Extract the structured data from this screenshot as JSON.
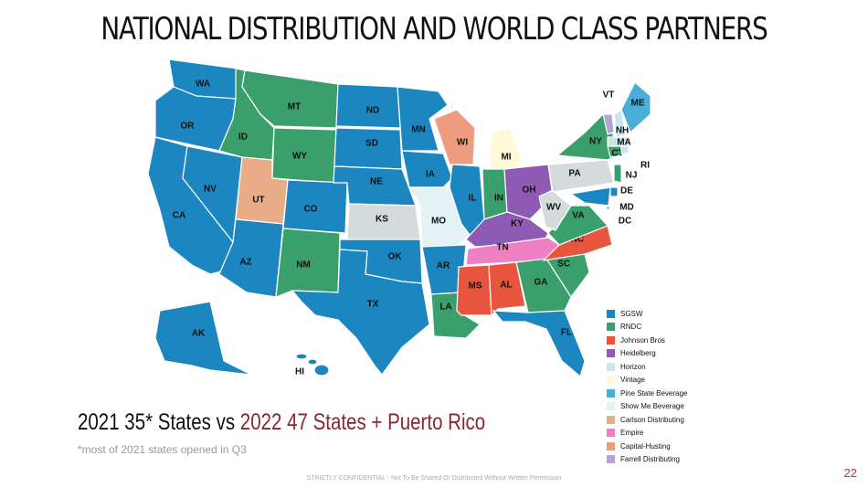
{
  "title": "NATIONAL DISTRIBUTION AND WORLD CLASS PARTNERS",
  "states": [
    {
      "label": "WA",
      "color": "#1b86c0"
    },
    {
      "label": "OR",
      "color": "#1b86c0"
    },
    {
      "label": "CA",
      "color": "#1b86c0"
    },
    {
      "label": "NV",
      "color": "#1b86c0"
    },
    {
      "label": "ID",
      "color": "#3a9f6b"
    },
    {
      "label": "MT",
      "color": "#3a9f6b"
    },
    {
      "label": "WY",
      "color": "#3a9f6b"
    },
    {
      "label": "UT",
      "color": "#e8ad86"
    },
    {
      "label": "CO",
      "color": "#1b86c0"
    },
    {
      "label": "AZ",
      "color": "#1b86c0"
    },
    {
      "label": "NM",
      "color": "#3a9f6b"
    },
    {
      "label": "ND",
      "color": "#1b86c0"
    },
    {
      "label": "SD",
      "color": "#1b86c0"
    },
    {
      "label": "NE",
      "color": "#1b86c0"
    },
    {
      "label": "KS",
      "color": "#d5dadd"
    },
    {
      "label": "OK",
      "color": "#1b86c0"
    },
    {
      "label": "TX",
      "color": "#1b86c0"
    },
    {
      "label": "MN",
      "color": "#1b86c0"
    },
    {
      "label": "IA",
      "color": "#1b86c0"
    },
    {
      "label": "MO",
      "color": "#e4f2f6"
    },
    {
      "label": "AR",
      "color": "#1b86c0"
    },
    {
      "label": "LA",
      "color": "#3a9f6b"
    },
    {
      "label": "WI",
      "color": "#ee9c7f"
    },
    {
      "label": "IL",
      "color": "#1b86c0"
    },
    {
      "label": "MI",
      "color": "#fdf9d9"
    },
    {
      "label": "IN",
      "color": "#3a9f6b"
    },
    {
      "label": "OH",
      "color": "#8e5ab3"
    },
    {
      "label": "KY",
      "color": "#8e5ab3"
    },
    {
      "label": "TN",
      "color": "#ee80c3"
    },
    {
      "label": "MS",
      "color": "#e8553f"
    },
    {
      "label": "AL",
      "color": "#e8553f"
    },
    {
      "label": "GA",
      "color": "#3a9f6b"
    },
    {
      "label": "FL",
      "color": "#1b86c0"
    },
    {
      "label": "SC",
      "color": "#3a9f6b"
    },
    {
      "label": "NC",
      "color": "#e8553f"
    },
    {
      "label": "VA",
      "color": "#3a9f6b"
    },
    {
      "label": "WV",
      "color": "#d5dadd"
    },
    {
      "label": "PA",
      "color": "#d5dadd"
    },
    {
      "label": "NY",
      "color": "#3a9f6b"
    },
    {
      "label": "VT",
      "color": "#b8a2d4"
    },
    {
      "label": "NH",
      "color": "#c9e6ea"
    },
    {
      "label": "ME",
      "color": "#4aaed6"
    },
    {
      "label": "MA",
      "color": "#c9e6ea"
    },
    {
      "label": "CT",
      "color": "#3a9f6b"
    },
    {
      "label": "RI",
      "color": "#c9e6ea"
    },
    {
      "label": "NJ",
      "color": "#3a9f6b"
    },
    {
      "label": "DE",
      "color": "#1b86c0"
    },
    {
      "label": "MD",
      "color": "#1b86c0"
    },
    {
      "label": "DC",
      "color": "#1b86c0"
    },
    {
      "label": "AK",
      "color": "#1b86c0"
    },
    {
      "label": "HI",
      "color": "#1b86c0"
    }
  ],
  "legend": [
    {
      "name": "SGSW",
      "color": "#1b86c0"
    },
    {
      "name": "RNDC",
      "color": "#3a9f6b"
    },
    {
      "name": "Johnson Bros",
      "color": "#e8553f"
    },
    {
      "name": "Heidelberg",
      "color": "#8e5ab3"
    },
    {
      "name": "Horizon",
      "color": "#c9e6ea"
    },
    {
      "name": "Vintage",
      "color": "#fdf9d9"
    },
    {
      "name": "Pine State Beverage",
      "color": "#4aaed6"
    },
    {
      "name": "Show Me Beverage",
      "color": "#e4f2f6"
    },
    {
      "name": "Carlson Distributing",
      "color": "#e8ad86"
    },
    {
      "name": "Empire",
      "color": "#ee80c3"
    },
    {
      "name": "Capital-Husting",
      "color": "#ee9c7f"
    },
    {
      "name": "Farrell Distributing",
      "color": "#b8a2d4"
    }
  ],
  "headline": {
    "before": "2021 35* States vs",
    "highlight": "2022 47 States + Puerto Rico"
  },
  "footnote": "*most of 2021 states opened in Q3",
  "footer": "STRICTLY CONFIDENTIAL - Not To Be Shared Or Distributed Without Written Permission",
  "page_number": "22"
}
